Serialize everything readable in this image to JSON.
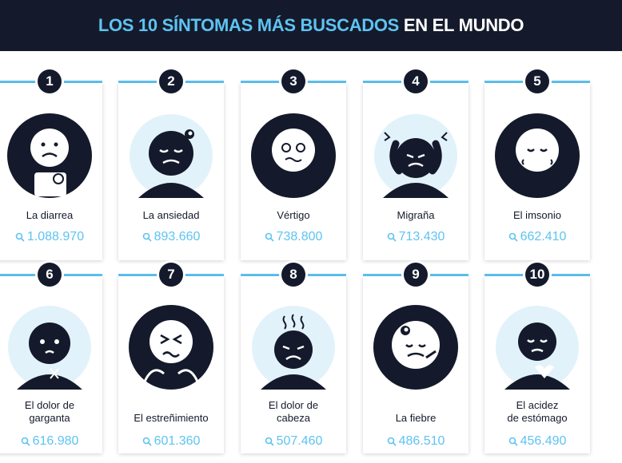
{
  "header": {
    "title_highlight": "LOS 10 SÍNTOMAS MÁS BUSCADOS",
    "title_rest": "EN EL MUNDO"
  },
  "colors": {
    "accent": "#5ec3f2",
    "dark": "#141a2b",
    "bubble": "#e2f2fb"
  },
  "items": [
    {
      "rank": "1",
      "label": "La diarrea",
      "count": "1.088.970",
      "icon": "toilet-paper-face-icon"
    },
    {
      "rank": "2",
      "label": "La ansiedad",
      "count": "893.660",
      "icon": "anxious-face-icon"
    },
    {
      "rank": "3",
      "label": "Vértigo",
      "count": "738.800",
      "icon": "dizzy-face-icon"
    },
    {
      "rank": "4",
      "label": "Migraña",
      "count": "713.430",
      "icon": "migraine-face-icon"
    },
    {
      "rank": "5",
      "label": "El imsonio",
      "count": "662.410",
      "icon": "sleepy-face-icon"
    },
    {
      "rank": "6",
      "label": "El dolor de garganta",
      "count": "616.980",
      "icon": "sore-throat-face-icon"
    },
    {
      "rank": "7",
      "label": "El estreñimiento",
      "count": "601.360",
      "icon": "constipated-face-icon"
    },
    {
      "rank": "8",
      "label": "El dolor de cabeza",
      "count": "507.460",
      "icon": "headache-face-icon"
    },
    {
      "rank": "9",
      "label": "La fiebre",
      "count": "486.510",
      "icon": "fever-face-icon"
    },
    {
      "rank": "10",
      "label": "El acidez de estómago",
      "count": "456.490",
      "icon": "heartburn-face-icon"
    }
  ]
}
